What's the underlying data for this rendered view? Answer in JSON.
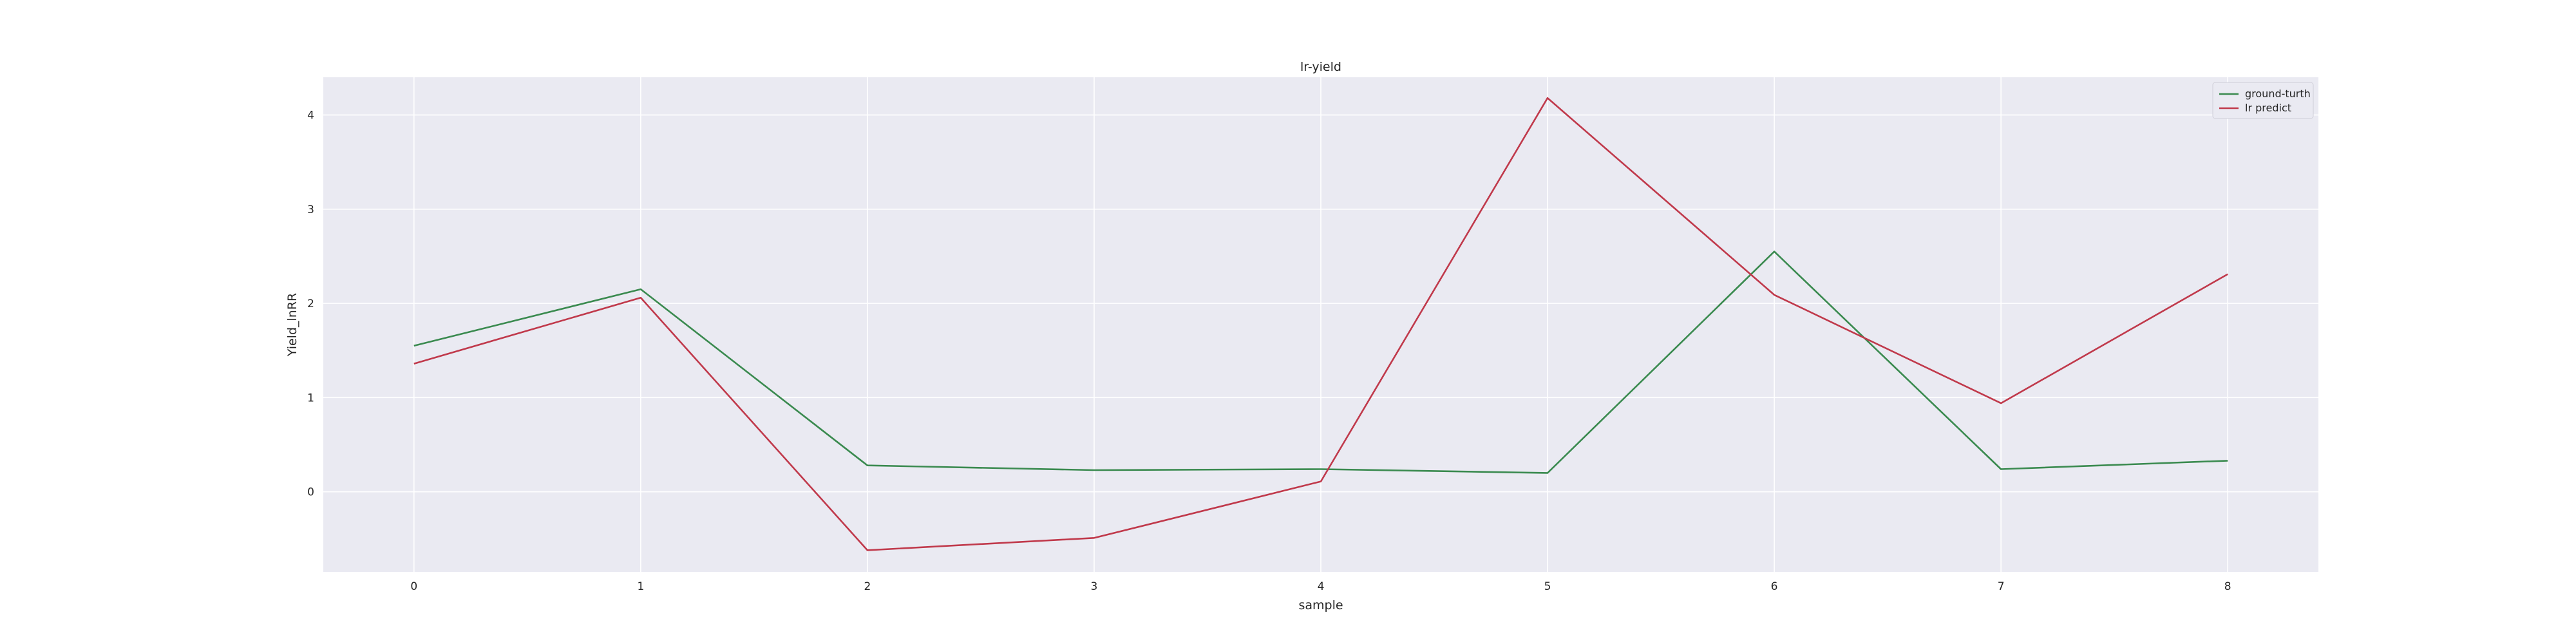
{
  "chart_data": {
    "type": "line",
    "title": "lr-yield",
    "xlabel": "sample",
    "ylabel": "Yield_lnRR",
    "x": [
      0,
      1,
      2,
      3,
      4,
      5,
      6,
      7,
      8
    ],
    "xlim": [
      -0.4,
      8.4
    ],
    "ylim": [
      -0.85,
      4.4
    ],
    "xticks": [
      "0",
      "1",
      "2",
      "3",
      "4",
      "5",
      "6",
      "7",
      "8"
    ],
    "yticks": [
      "0",
      "1",
      "2",
      "3",
      "4"
    ],
    "grid": true,
    "legend_position": "upper right",
    "series": [
      {
        "name": "ground-turth",
        "color": "#3a8a4f",
        "values": [
          1.55,
          2.15,
          0.28,
          0.23,
          0.24,
          0.2,
          2.55,
          0.24,
          0.33
        ]
      },
      {
        "name": "lr predict",
        "color": "#c0394b",
        "values": [
          1.36,
          2.06,
          -0.62,
          -0.49,
          0.11,
          4.18,
          2.09,
          0.94,
          2.31
        ]
      }
    ],
    "background_color": "#eaeaf2",
    "grid_color": "#ffffff"
  }
}
